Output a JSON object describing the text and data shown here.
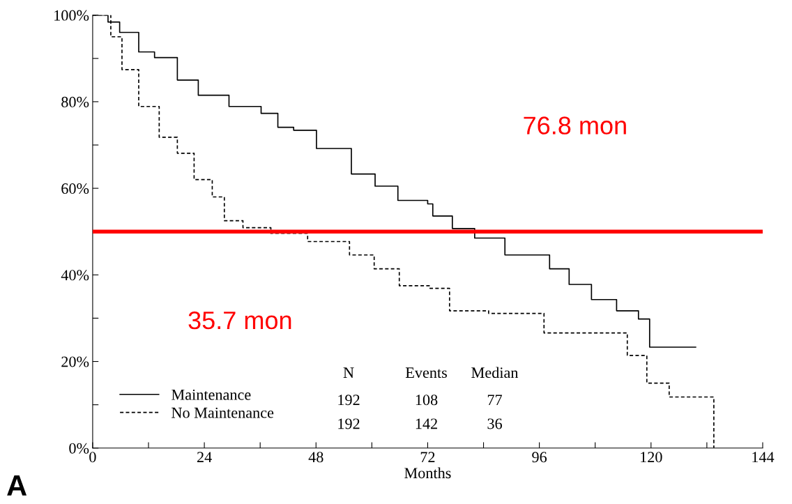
{
  "chart_data": {
    "type": "step",
    "xlabel": "Months",
    "xlim": [
      0,
      144
    ],
    "ylim": [
      0,
      100
    ],
    "xticks": [
      0,
      {
        "value": 12,
        "label": null
      },
      24,
      {
        "value": 36,
        "label": null
      },
      48,
      {
        "value": 60,
        "label": null
      },
      72,
      {
        "value": 84,
        "label": null
      },
      96,
      {
        "value": 108,
        "label": null
      },
      120,
      {
        "value": 132,
        "label": null
      },
      144
    ],
    "yticks": [
      {
        "value": 0,
        "label": "0%"
      },
      {
        "value": 10,
        "label": null
      },
      {
        "value": 20,
        "label": "20%"
      },
      {
        "value": 30,
        "label": null
      },
      {
        "value": 40,
        "label": "40%"
      },
      {
        "value": 50,
        "label": null
      },
      {
        "value": 60,
        "label": "60%"
      },
      {
        "value": 70,
        "label": null
      },
      {
        "value": 80,
        "label": "80%"
      },
      {
        "value": 90,
        "label": null
      },
      {
        "value": 100,
        "label": "100%"
      }
    ],
    "series": [
      {
        "name": "Maintenance",
        "color": "#000000",
        "line_style": "solid",
        "x": [
          0,
          1,
          3.3,
          5.8,
          9.9,
          13.3,
          18.2,
          22.7,
          29.3,
          36.2,
          39.8,
          43.2,
          48.1,
          55.6,
          60.7,
          65.6,
          72.0,
          73.1,
          77.3,
          82.1,
          88.6,
          98.2,
          102.4,
          107.2,
          112.6,
          117.3,
          119.7,
          129.6
        ],
        "values": [
          100,
          100,
          98.4,
          96,
          91.5,
          90.2,
          85,
          81.5,
          78.9,
          77.3,
          74.1,
          73.4,
          69.2,
          63.3,
          60.5,
          57.2,
          56.4,
          53.6,
          50.7,
          48.5,
          44.6,
          41.4,
          37.8,
          34.3,
          31.7,
          29.8,
          23.3,
          23.3
        ]
      },
      {
        "name": "No Maintenance",
        "color": "#000000",
        "line_style": "dashed",
        "x": [
          0,
          3.9,
          6.3,
          9.9,
          14.3,
          18.2,
          21.8,
          25.7,
          28.3,
          32.3,
          38.3,
          46.2,
          55.2,
          60.5,
          65.9,
          72.5,
          76.7,
          85.1,
          97,
          113.7,
          114.9,
          119.1,
          123.9,
          133.5,
          133.5
        ],
        "values": [
          100,
          95,
          87.4,
          78.9,
          71.8,
          68.1,
          62,
          58,
          52.5,
          50.9,
          49.6,
          47.7,
          44.6,
          41.4,
          37.5,
          36.9,
          31.7,
          31.1,
          26.6,
          26.6,
          21.4,
          15,
          11.8,
          11.8,
          0
        ]
      }
    ],
    "ref_lines": [
      {
        "axis": "y",
        "value": 50,
        "color": "#ff0000"
      }
    ],
    "legend": "bottom left",
    "grid": false,
    "annotations": [
      "76.8 mon",
      "35.7 mon",
      "N",
      "Events",
      "Median",
      "192",
      "108",
      "77",
      "192",
      "142",
      "36",
      "A"
    ]
  }
}
